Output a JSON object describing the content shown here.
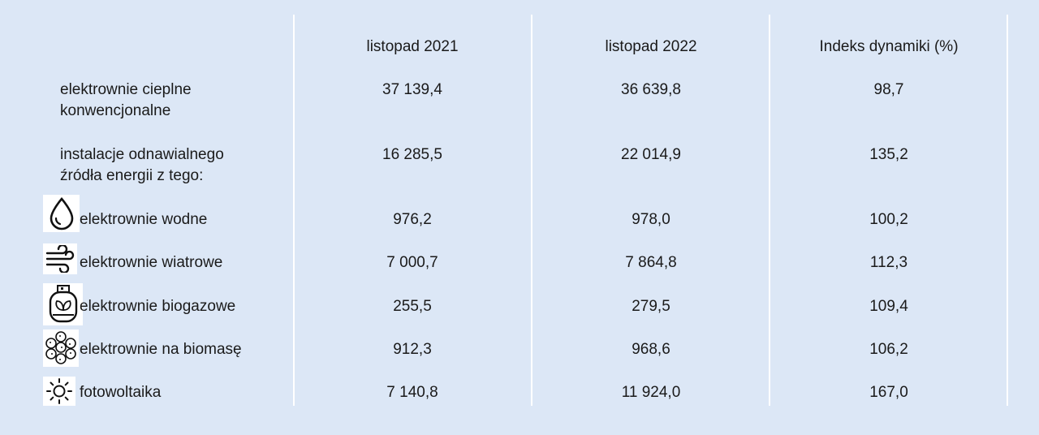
{
  "table": {
    "columns": [
      "",
      "listopad 2021",
      "listopad 2022",
      "Indeks dynamiki (%)"
    ],
    "rows": [
      {
        "label_lines": [
          "elektrownie cieplne",
          "konwencjonalne"
        ],
        "icon": null,
        "values": [
          "37 139,4",
          "36 639,8",
          "98,7"
        ]
      },
      {
        "label_lines": [
          "instalacje odnawialnego",
          "źródła energii z tego:"
        ],
        "icon": null,
        "values": [
          "16 285,5",
          "22 014,9",
          "135,2"
        ]
      },
      {
        "label_lines": [
          "elektrownie wodne"
        ],
        "icon": "water-drop-icon",
        "values": [
          "976,2",
          "978,0",
          "100,2"
        ]
      },
      {
        "label_lines": [
          "elektrownie wiatrowe"
        ],
        "icon": "wind-icon",
        "values": [
          "7 000,7",
          "7 864,8",
          "112,3"
        ]
      },
      {
        "label_lines": [
          "elektrownie biogazowe"
        ],
        "icon": "biogas-tank-icon",
        "values": [
          "255,5",
          "279,5",
          "109,4"
        ]
      },
      {
        "label_lines": [
          "elektrownie na biomasę"
        ],
        "icon": "biomass-pellets-icon",
        "values": [
          "912,3",
          "968,6",
          "106,2"
        ]
      },
      {
        "label_lines": [
          "fotowoltaika"
        ],
        "icon": "sun-icon",
        "values": [
          "7 140,8",
          "11 924,0",
          "167,0"
        ]
      }
    ]
  }
}
